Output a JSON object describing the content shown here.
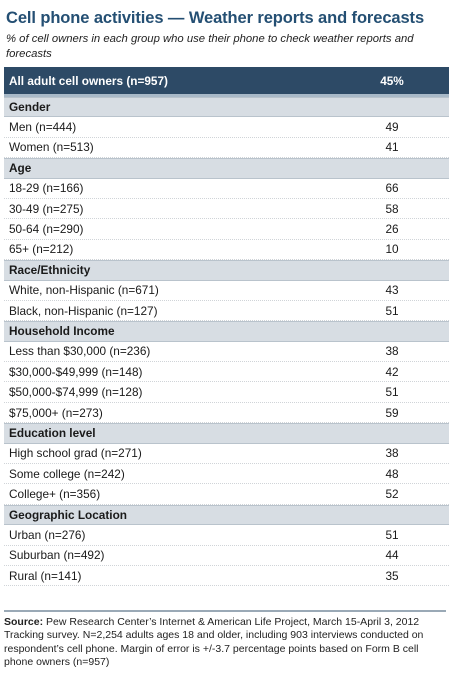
{
  "chart_data": {
    "type": "table",
    "title": "Cell phone activities — Weather reports and forecasts",
    "subtitle": "% of cell owners in each group who use their phone to check weather reports and forecasts",
    "total": {
      "label": "All adult cell owners (n=957)",
      "value": "45%"
    },
    "sections": [
      {
        "heading": "Gender",
        "rows": [
          {
            "label": "Men (n=444)",
            "value": "49"
          },
          {
            "label": "Women (n=513)",
            "value": "41"
          }
        ]
      },
      {
        "heading": "Age",
        "rows": [
          {
            "label": "18-29 (n=166)",
            "value": "66"
          },
          {
            "label": "30-49 (n=275)",
            "value": "58"
          },
          {
            "label": "50-64 (n=290)",
            "value": "26"
          },
          {
            "label": "65+ (n=212)",
            "value": "10"
          }
        ]
      },
      {
        "heading": "Race/Ethnicity",
        "rows": [
          {
            "label": "White, non-Hispanic (n=671)",
            "value": "43"
          },
          {
            "label": "Black, non-Hispanic (n=127)",
            "value": "51"
          }
        ]
      },
      {
        "heading": "Household Income",
        "rows": [
          {
            "label": "Less than $30,000 (n=236)",
            "value": "38"
          },
          {
            "label": "$30,000-$49,999 (n=148)",
            "value": "42"
          },
          {
            "label": "$50,000-$74,999 (n=128)",
            "value": "51"
          },
          {
            "label": "$75,000+ (n=273)",
            "value": "59"
          }
        ]
      },
      {
        "heading": "Education level",
        "rows": [
          {
            "label": "High school grad (n=271)",
            "value": "38"
          },
          {
            "label": "Some college (n=242)",
            "value": "48"
          },
          {
            "label": "College+ (n=356)",
            "value": "52"
          }
        ]
      },
      {
        "heading": "Geographic Location",
        "rows": [
          {
            "label": "Urban (n=276)",
            "value": "51"
          },
          {
            "label": "Suburban (n=492)",
            "value": "44"
          },
          {
            "label": "Rural (n=141)",
            "value": "35"
          }
        ]
      }
    ]
  },
  "source": {
    "label": "Source:",
    "text": "Pew Research Center’s Internet & American Life Project, March 15-April 3, 2012 Tracking survey. N=2,254 adults ages 18 and older, including 903 interviews conducted on respondent’s cell phone. Margin of error is +/-3.7 percentage points based on Form B cell phone owners (n=957)"
  },
  "colors": {
    "title": "#244f73",
    "header_bg": "#2d4a66",
    "section_bg": "#d7dde3"
  }
}
